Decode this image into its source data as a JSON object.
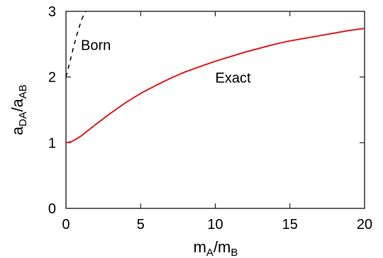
{
  "chart_data": {
    "type": "line",
    "title": "",
    "xlabel": {
      "main1": "m",
      "sub1": "A",
      "sep": "/m",
      "sub2": "B"
    },
    "ylabel": {
      "main1": "a",
      "sub1": "DA",
      "sep": "/a",
      "sub2": "AB"
    },
    "xlim": [
      0,
      20
    ],
    "ylim": [
      0,
      3
    ],
    "x_ticks": [
      0,
      5,
      10,
      15,
      20
    ],
    "y_ticks": [
      0,
      1,
      2,
      3
    ],
    "x_tick_labels": [
      "0",
      "5",
      "10",
      "15",
      "20"
    ],
    "y_tick_labels": [
      "0",
      "1",
      "2",
      "3"
    ],
    "grid": false,
    "legend": "none",
    "series": [
      {
        "name": "Exact",
        "color": "#e41a1c",
        "style": "solid",
        "x": [
          0,
          0.25,
          0.5,
          1,
          1.5,
          2,
          3,
          4,
          5,
          6,
          7,
          8,
          9,
          10,
          11,
          12,
          13,
          14,
          15,
          16,
          17,
          18,
          19,
          20
        ],
        "y": [
          1.0,
          1.01,
          1.03,
          1.1,
          1.19,
          1.28,
          1.45,
          1.61,
          1.75,
          1.87,
          1.98,
          2.08,
          2.16,
          2.24,
          2.31,
          2.38,
          2.44,
          2.5,
          2.55,
          2.59,
          2.63,
          2.67,
          2.71,
          2.74
        ]
      },
      {
        "name": "Born",
        "color": "#000000",
        "style": "dashed",
        "x": [
          0,
          0.25,
          0.5,
          0.75,
          1.0,
          1.25,
          1.35
        ],
        "y": [
          2.0,
          2.22,
          2.45,
          2.66,
          2.84,
          2.98,
          3.0
        ]
      }
    ],
    "annotations": [
      {
        "text": "Born",
        "x": 1.0,
        "y": 2.5
      },
      {
        "text": "Exact",
        "x": 10.0,
        "y": 2.0
      }
    ]
  }
}
